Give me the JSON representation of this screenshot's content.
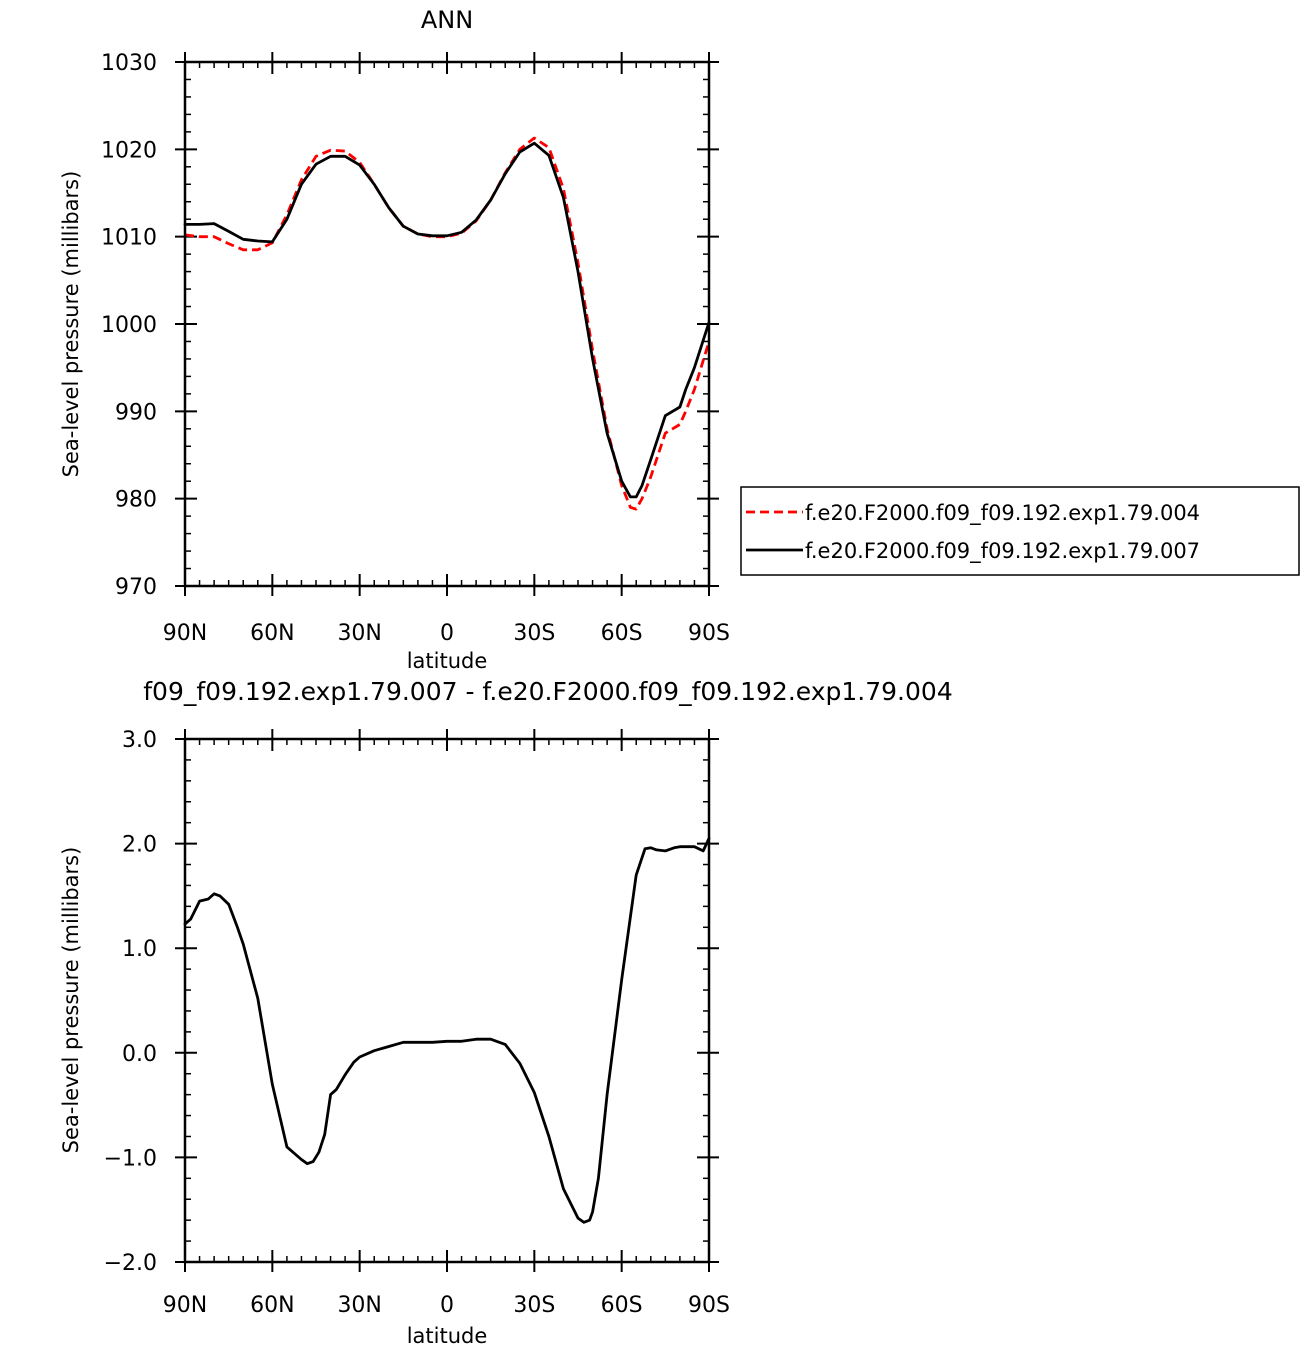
{
  "chart_data": [
    {
      "type": "line",
      "title": "ANN",
      "xlabel": "latitude",
      "ylabel": "Sea-level pressure (millibars)",
      "xlim": [
        90,
        -90
      ],
      "ylim": [
        970,
        1030
      ],
      "xticks": [
        90,
        60,
        30,
        0,
        -30,
        -60,
        -90
      ],
      "xtick_labels": [
        "90N",
        "60N",
        "30N",
        "0",
        "30S",
        "60S",
        "90S"
      ],
      "yticks": [
        970,
        980,
        990,
        1000,
        1010,
        1020,
        1030
      ],
      "ytick_labels": [
        "970",
        "980",
        "990",
        "1000",
        "1010",
        "1020",
        "1030"
      ],
      "legend_position": "right",
      "series": [
        {
          "name": "f.e20.F2000.f09_f09.192.exp1.79.004",
          "color": "#ff0000",
          "dash": "dashed",
          "x": [
            90,
            85,
            80,
            75,
            70,
            65,
            60,
            55,
            50,
            45,
            40,
            35,
            30,
            25,
            20,
            15,
            10,
            5,
            0,
            -5,
            -10,
            -15,
            -20,
            -25,
            -30,
            -35,
            -40,
            -45,
            -50,
            -55,
            -60,
            -63,
            -65,
            -67,
            -70,
            -75,
            -80,
            -82,
            -85,
            -90
          ],
          "y": [
            1010.2,
            1010.0,
            1010.0,
            1009.2,
            1008.5,
            1008.5,
            1009.3,
            1012.5,
            1016.5,
            1019.2,
            1019.9,
            1019.8,
            1018.5,
            1016.0,
            1013.3,
            1011.2,
            1010.3,
            1010.0,
            1010.0,
            1010.4,
            1011.8,
            1014.2,
            1017.3,
            1020.0,
            1021.3,
            1020.2,
            1015.5,
            1007.0,
            997.0,
            988.0,
            981.5,
            979.0,
            978.8,
            980.0,
            982.5,
            987.5,
            988.5,
            990.0,
            992.5,
            998.0
          ]
        },
        {
          "name": "f.e20.F2000.f09_f09.192.exp1.79.007",
          "color": "#000000",
          "dash": "solid",
          "x": [
            90,
            85,
            80,
            75,
            70,
            65,
            60,
            55,
            50,
            45,
            40,
            35,
            30,
            25,
            20,
            15,
            10,
            5,
            0,
            -5,
            -10,
            -15,
            -20,
            -25,
            -30,
            -35,
            -40,
            -45,
            -50,
            -55,
            -60,
            -63,
            -65,
            -67,
            -70,
            -75,
            -80,
            -82,
            -85,
            -90
          ],
          "y": [
            1011.4,
            1011.4,
            1011.5,
            1010.6,
            1009.7,
            1009.5,
            1009.4,
            1012.0,
            1016.0,
            1018.3,
            1019.2,
            1019.2,
            1018.2,
            1016.0,
            1013.3,
            1011.2,
            1010.3,
            1010.1,
            1010.1,
            1010.5,
            1011.9,
            1014.2,
            1017.2,
            1019.7,
            1020.7,
            1019.3,
            1014.5,
            1006.0,
            996.0,
            987.5,
            982.0,
            980.2,
            980.2,
            981.5,
            984.5,
            989.5,
            990.5,
            992.5,
            995.0,
            1000.2
          ]
        }
      ]
    },
    {
      "type": "line",
      "title": "f09_f09.192.exp1.79.007 - f.e20.F2000.f09_f09.192.exp1.79.004",
      "xlabel": "latitude",
      "ylabel": "Sea-level pressure (millibars)",
      "xlim": [
        90,
        -90
      ],
      "ylim": [
        -2.0,
        3.0
      ],
      "xticks": [
        90,
        60,
        30,
        0,
        -30,
        -60,
        -90
      ],
      "xtick_labels": [
        "90N",
        "60N",
        "30N",
        "0",
        "30S",
        "60S",
        "90S"
      ],
      "yticks": [
        -2.0,
        -1.0,
        0.0,
        1.0,
        2.0,
        3.0
      ],
      "ytick_labels": [
        "−2.0",
        "−1.0",
        "0.0",
        "1.0",
        "2.0",
        "3.0"
      ],
      "series": [
        {
          "color": "#000000",
          "dash": "solid",
          "x": [
            90,
            88,
            85,
            82,
            80,
            78,
            75,
            72,
            70,
            65,
            60,
            55,
            50,
            48,
            46,
            44,
            42,
            40,
            38,
            35,
            32,
            30,
            25,
            20,
            15,
            10,
            5,
            0,
            -5,
            -10,
            -15,
            -20,
            -25,
            -30,
            -35,
            -40,
            -45,
            -47,
            -49,
            -50,
            -52,
            -55,
            -60,
            -65,
            -68,
            -70,
            -72,
            -75,
            -78,
            -80,
            -85,
            -88,
            -90
          ],
          "y": [
            1.23,
            1.28,
            1.45,
            1.47,
            1.52,
            1.5,
            1.42,
            1.2,
            1.04,
            0.52,
            -0.3,
            -0.9,
            -1.02,
            -1.06,
            -1.04,
            -0.95,
            -0.78,
            -0.4,
            -0.35,
            -0.21,
            -0.09,
            -0.04,
            0.02,
            0.06,
            0.1,
            0.1,
            0.1,
            0.11,
            0.11,
            0.13,
            0.13,
            0.08,
            -0.1,
            -0.38,
            -0.8,
            -1.3,
            -1.58,
            -1.62,
            -1.6,
            -1.52,
            -1.2,
            -0.4,
            0.7,
            1.7,
            1.95,
            1.96,
            1.94,
            1.93,
            1.96,
            1.97,
            1.97,
            1.93,
            2.05
          ]
        }
      ]
    }
  ],
  "legend": {
    "items": [
      {
        "label": "f.e20.F2000.f09_f09.192.exp1.79.004",
        "color": "#ff0000",
        "dash": "dashed"
      },
      {
        "label": "f.e20.F2000.f09_f09.192.exp1.79.007",
        "color": "#000000",
        "dash": "solid"
      }
    ]
  }
}
